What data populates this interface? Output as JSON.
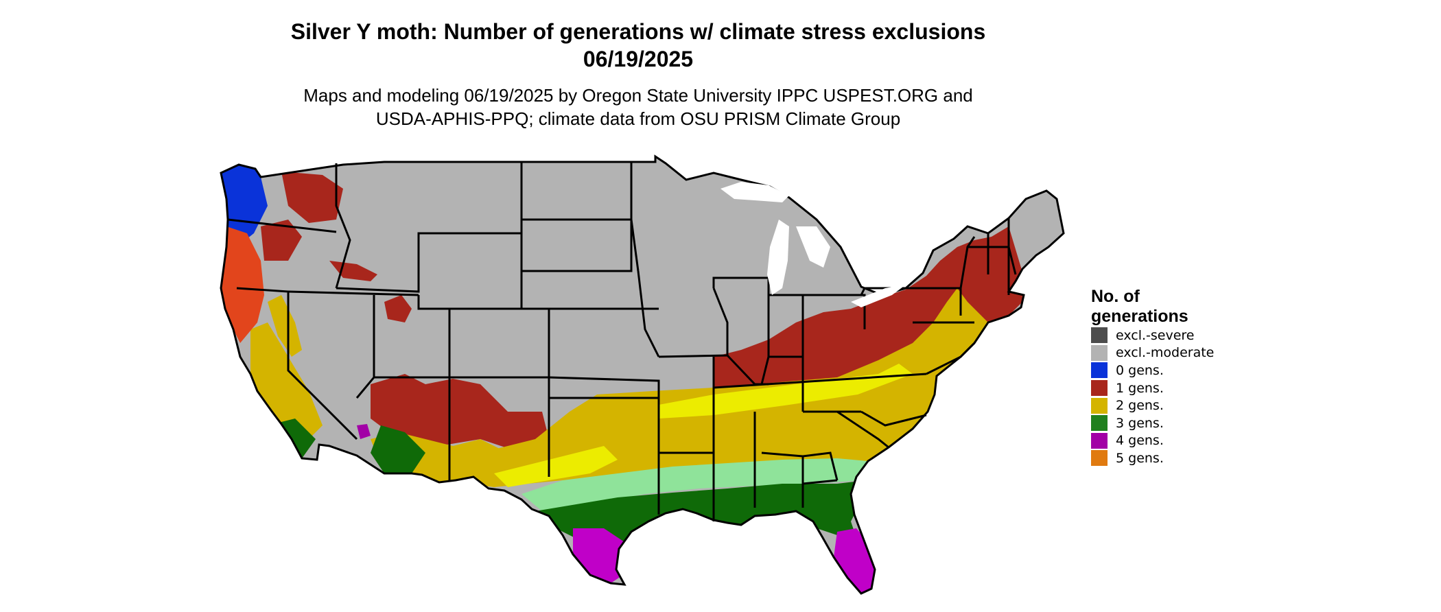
{
  "title_line1": "Silver Y moth: Number of generations w/ climate stress exclusions",
  "title_line2": "06/19/2025",
  "subtitle_line1": "Maps and modeling 06/19/2025 by Oregon State University IPPC USPEST.ORG and",
  "subtitle_line2": "USDA-APHIS-PPQ; climate data from OSU PRISM Climate Group",
  "legend": {
    "title": "No. of generations",
    "items": [
      {
        "label": "excl.-severe",
        "color": "#4d4d4d"
      },
      {
        "label": "excl.-moderate",
        "color": "#b3b3b3"
      },
      {
        "label": "0 gens.",
        "color": "#0a33d9"
      },
      {
        "label": "1 gens.",
        "color": "#a8261c"
      },
      {
        "label": "2 gens.",
        "color": "#d4b400"
      },
      {
        "label": "3 gens.",
        "color": "#20801e"
      },
      {
        "label": "4 gens.",
        "color": "#a200a6"
      },
      {
        "label": "5 gens.",
        "color": "#e07a10"
      }
    ]
  },
  "map_colors": {
    "light_green": "#8fe39a",
    "bright_yellow": "#ecec00",
    "orange_red": "#e2451c",
    "dark_green": "#0f6a08",
    "magenta": "#c000c8"
  }
}
